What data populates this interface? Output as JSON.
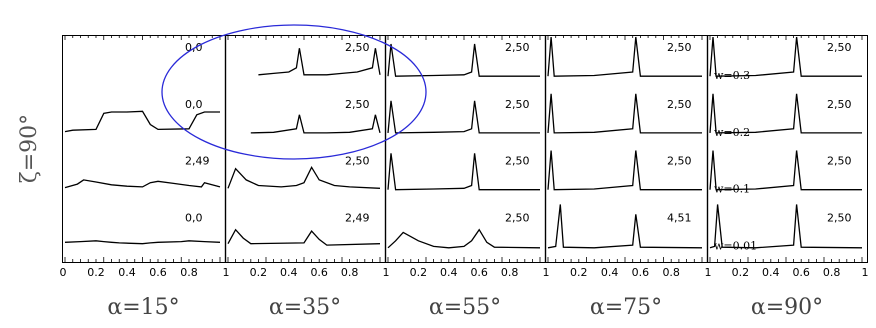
{
  "figure": {
    "row_label": "ζ=90°",
    "x_tick_labels": [
      "0",
      "0.2",
      "0.4",
      "0.6",
      "0.8"
    ],
    "last_tick_label": "1",
    "panel_tick_first": [
      "0",
      "1",
      "1",
      "1",
      "1"
    ]
  },
  "chart_data": [
    {
      "type": "line",
      "panel_label": "α=15°",
      "xlim": [
        0,
        1
      ],
      "series": [
        {
          "label": "0,0",
          "x": [
            0,
            0.1,
            0.2,
            0.25,
            0.3,
            0.35,
            0.5,
            0.55,
            0.6,
            0.75,
            0.8,
            0.9,
            1
          ],
          "y": [
            0.5,
            0.55,
            0.6,
            0.55,
            0.5,
            0.45,
            0.4,
            0.45,
            0.5,
            0.55,
            0.6,
            0.55,
            0.5
          ]
        },
        {
          "label": "2,49",
          "x": [
            0,
            0.08,
            0.12,
            0.2,
            0.3,
            0.4,
            0.5,
            0.55,
            0.6,
            0.7,
            0.8,
            0.88,
            0.9,
            1
          ],
          "y": [
            0.35,
            0.6,
            0.9,
            0.75,
            0.55,
            0.45,
            0.4,
            0.7,
            0.8,
            0.65,
            0.5,
            0.4,
            0.7,
            0.4
          ]
        },
        {
          "label": "0,0",
          "x": [
            0,
            0.05,
            0.2,
            0.25,
            0.3,
            0.4,
            0.5,
            0.55,
            0.6,
            0.8,
            0.85,
            0.9,
            1
          ],
          "y": [
            0.3,
            0.4,
            0.45,
            1.6,
            1.7,
            1.7,
            1.75,
            0.8,
            0.45,
            0.5,
            1.5,
            1.7,
            1.7
          ]
        },
        {
          "label": "0,0",
          "x": [],
          "y": []
        }
      ]
    },
    {
      "type": "line",
      "panel_label": "α=35°",
      "xlim": [
        0,
        1
      ],
      "series": [
        {
          "label": "2,49",
          "x": [
            0,
            0.05,
            0.1,
            0.15,
            0.5,
            0.55,
            0.6,
            0.65,
            1
          ],
          "y": [
            0.4,
            1.4,
            0.8,
            0.4,
            0.45,
            1.3,
            0.7,
            0.3,
            0.4
          ]
        },
        {
          "label": "2,50",
          "x": [
            0,
            0.05,
            0.12,
            0.2,
            0.35,
            0.45,
            0.5,
            0.55,
            0.6,
            0.7,
            0.8,
            1
          ],
          "y": [
            0.3,
            1.7,
            0.9,
            0.5,
            0.4,
            0.5,
            0.7,
            1.8,
            0.9,
            0.5,
            0.4,
            0.3
          ]
        },
        {
          "label": "2,50",
          "x": [
            0.15,
            0.3,
            0.45,
            0.47,
            0.5,
            0.65,
            0.8,
            0.95,
            0.97,
            1
          ],
          "y": [
            0.2,
            0.25,
            0.5,
            1.5,
            0.2,
            0.2,
            0.25,
            0.5,
            1.5,
            0.2
          ]
        },
        {
          "label": "2,50",
          "x": [
            0.2,
            0.3,
            0.4,
            0.45,
            0.47,
            0.5,
            0.65,
            0.75,
            0.85,
            0.95,
            0.97,
            1
          ],
          "y": [
            0.3,
            0.4,
            0.5,
            0.8,
            2.2,
            0.3,
            0.3,
            0.4,
            0.5,
            0.8,
            2.2,
            0.3
          ]
        }
      ]
    },
    {
      "type": "line",
      "panel_label": "α=55°",
      "xlim": [
        0,
        1
      ],
      "series": [
        {
          "label": "2,50",
          "x": [
            0,
            0.05,
            0.1,
            0.2,
            0.3,
            0.4,
            0.5,
            0.55,
            0.6,
            0.65,
            0.7,
            1
          ],
          "y": [
            0.1,
            0.6,
            1.2,
            0.6,
            0.2,
            0.1,
            0.2,
            0.6,
            1.4,
            0.5,
            0.15,
            0.1
          ]
        },
        {
          "label": "2,50",
          "x": [
            0,
            0.02,
            0.05,
            0.3,
            0.5,
            0.55,
            0.57,
            0.6,
            1
          ],
          "y": [
            0.2,
            2.8,
            0.2,
            0.25,
            0.3,
            0.5,
            2.8,
            0.2,
            0.2
          ]
        },
        {
          "label": "2,50",
          "x": [
            0,
            0.02,
            0.05,
            0.3,
            0.5,
            0.55,
            0.57,
            0.6,
            1
          ],
          "y": [
            0.2,
            2.5,
            0.2,
            0.25,
            0.3,
            0.5,
            2.5,
            0.2,
            0.2
          ]
        },
        {
          "label": "2,50",
          "x": [
            0,
            0.02,
            0.05,
            0.3,
            0.5,
            0.55,
            0.57,
            0.6,
            1
          ],
          "y": [
            0.2,
            2.5,
            0.2,
            0.25,
            0.3,
            0.5,
            2.5,
            0.2,
            0.2
          ]
        }
      ]
    },
    {
      "type": "line",
      "panel_label": "α=75°",
      "xlim": [
        0,
        1
      ],
      "series": [
        {
          "label": "4,51",
          "x": [
            0,
            0.05,
            0.08,
            0.1,
            0.3,
            0.55,
            0.57,
            0.6,
            1
          ],
          "y": [
            0.1,
            0.2,
            3.2,
            0.15,
            0.1,
            0.3,
            2.5,
            0.15,
            0.1
          ]
        },
        {
          "label": "2,50",
          "x": [
            0,
            0.02,
            0.04,
            0.3,
            0.55,
            0.57,
            0.6,
            1
          ],
          "y": [
            0.2,
            3.0,
            0.2,
            0.25,
            0.5,
            3.0,
            0.2,
            0.2
          ]
        },
        {
          "label": "2,50",
          "x": [
            0,
            0.02,
            0.04,
            0.3,
            0.55,
            0.57,
            0.6,
            1
          ],
          "y": [
            0.2,
            3.0,
            0.2,
            0.25,
            0.5,
            3.0,
            0.2,
            0.2
          ]
        },
        {
          "label": "2,50",
          "x": [
            0,
            0.02,
            0.04,
            0.3,
            0.55,
            0.57,
            0.6,
            1
          ],
          "y": [
            0.2,
            3.0,
            0.2,
            0.25,
            0.5,
            3.0,
            0.2,
            0.2
          ]
        }
      ]
    },
    {
      "type": "line",
      "panel_label": "α=90°",
      "xlim": [
        0,
        1
      ],
      "series": [
        {
          "label": "2,50",
          "annotation": "w=0.01",
          "x": [
            0,
            0.03,
            0.05,
            0.08,
            0.3,
            0.55,
            0.57,
            0.6,
            1
          ],
          "y": [
            0.1,
            0.2,
            3.2,
            0.15,
            0.1,
            0.3,
            3.2,
            0.15,
            0.1
          ]
        },
        {
          "label": "2,50",
          "annotation": "w=0.1",
          "x": [
            0,
            0.02,
            0.04,
            0.3,
            0.55,
            0.57,
            0.6,
            1
          ],
          "y": [
            0.2,
            3.0,
            0.2,
            0.25,
            0.5,
            3.0,
            0.2,
            0.2
          ]
        },
        {
          "label": "2,50",
          "annotation": "w=0.2",
          "x": [
            0,
            0.02,
            0.04,
            0.3,
            0.55,
            0.57,
            0.6,
            1
          ],
          "y": [
            0.2,
            3.0,
            0.2,
            0.25,
            0.5,
            3.0,
            0.2,
            0.2
          ]
        },
        {
          "label": "2,50",
          "annotation": "w=0.3",
          "x": [
            0,
            0.02,
            0.04,
            0.3,
            0.55,
            0.57,
            0.6,
            1
          ],
          "y": [
            0.2,
            3.0,
            0.2,
            0.25,
            0.5,
            3.0,
            0.2,
            0.2
          ]
        }
      ]
    }
  ],
  "colors": {
    "curve": "#000000",
    "frame": "#000000",
    "highlight_ellipse": "#2a2ad8",
    "bottom_label": "#444444",
    "row_label": "#555555"
  }
}
